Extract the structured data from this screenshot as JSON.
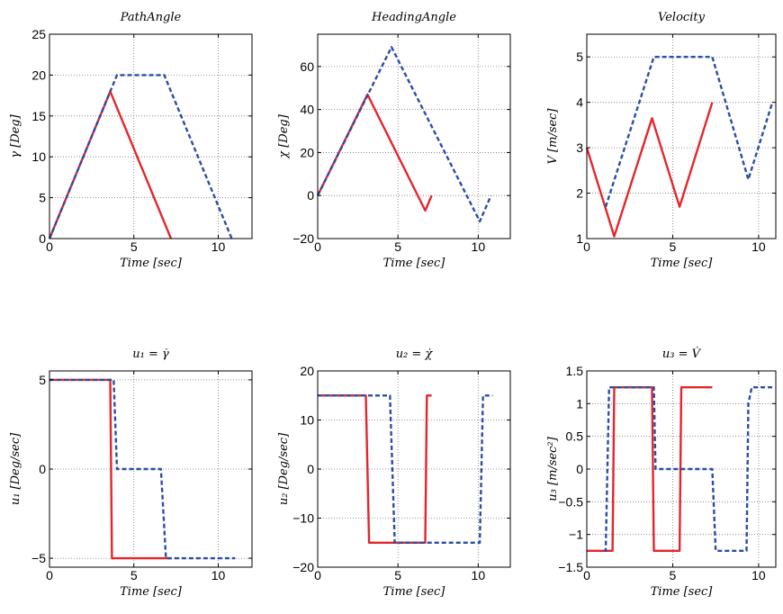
{
  "colors": {
    "series_solid": "#e3262b",
    "series_dashed": "#2a4ea6"
  },
  "chart_data": [
    {
      "type": "line",
      "title": "PathAngle",
      "xlabel": "Time [sec]",
      "ylabel": "γ [Deg]",
      "xlim": [
        0,
        12
      ],
      "ylim": [
        0,
        25
      ],
      "xticks": [
        0,
        5,
        10
      ],
      "yticks": [
        0,
        5,
        10,
        15,
        20,
        25
      ],
      "grid": true,
      "series": [
        {
          "style": "solid",
          "x": [
            0,
            3.6,
            7.2
          ],
          "y": [
            0,
            18,
            0
          ]
        },
        {
          "style": "dashed",
          "x": [
            0,
            3.6,
            4.0,
            6.8,
            10.8
          ],
          "y": [
            0,
            18,
            20,
            20,
            0
          ]
        }
      ]
    },
    {
      "type": "line",
      "title": "HeadingAngle",
      "xlabel": "Time [sec]",
      "ylabel": "χ [Deg]",
      "xlim": [
        0,
        12
      ],
      "ylim": [
        -20,
        75
      ],
      "xticks": [
        0,
        5,
        10
      ],
      "yticks": [
        -20,
        0,
        20,
        40,
        60
      ],
      "grid": true,
      "series": [
        {
          "style": "solid",
          "x": [
            0,
            3.1,
            6.7,
            7.1
          ],
          "y": [
            0,
            47,
            -7,
            0
          ]
        },
        {
          "style": "dashed",
          "x": [
            0,
            4.6,
            10.1,
            10.8
          ],
          "y": [
            0,
            69,
            -12,
            0
          ]
        }
      ]
    },
    {
      "type": "line",
      "title": "Velocity",
      "xlabel": "Time [sec]",
      "ylabel": "V [m/sec]",
      "xlim": [
        0,
        11
      ],
      "ylim": [
        1,
        5.5
      ],
      "xticks": [
        0,
        5,
        10
      ],
      "yticks": [
        1,
        2,
        3,
        4,
        5
      ],
      "grid": true,
      "series": [
        {
          "style": "solid",
          "x": [
            0,
            1.6,
            3.8,
            5.4,
            7.3
          ],
          "y": [
            3,
            1.05,
            3.65,
            1.7,
            4.0
          ]
        },
        {
          "style": "dashed",
          "x": [
            1.1,
            3.9,
            7.3,
            9.4,
            10.8
          ],
          "y": [
            1.7,
            5,
            5,
            2.3,
            4.0
          ]
        }
      ]
    },
    {
      "type": "line",
      "title": "u₁ = γ̇",
      "xlabel": "Time [sec]",
      "ylabel": "u₁ [Deg/sec]",
      "xlim": [
        0,
        12
      ],
      "ylim": [
        -5.5,
        5.5
      ],
      "xticks": [
        0,
        5,
        10
      ],
      "yticks": [
        -5,
        0,
        5
      ],
      "grid": true,
      "series": [
        {
          "style": "solid",
          "x": [
            0,
            3.6,
            3.7,
            7.2
          ],
          "y": [
            5,
            5,
            -5,
            -5
          ]
        },
        {
          "style": "dashed",
          "x": [
            0,
            3.8,
            4.0,
            6.6,
            6.9,
            11
          ],
          "y": [
            5,
            5,
            0,
            0,
            -5,
            -5
          ]
        }
      ]
    },
    {
      "type": "line",
      "title": "u₂ = χ̇",
      "xlabel": "Time [sec]",
      "ylabel": "u₂ [Deg/sec]",
      "xlim": [
        0,
        12
      ],
      "ylim": [
        -20,
        20
      ],
      "xticks": [
        0,
        5,
        10
      ],
      "yticks": [
        -20,
        -10,
        0,
        10,
        20
      ],
      "grid": true,
      "series": [
        {
          "style": "solid",
          "x": [
            0,
            3.0,
            3.2,
            6.7,
            6.8,
            7.1
          ],
          "y": [
            15,
            15,
            -15,
            -15,
            15,
            15
          ]
        },
        {
          "style": "dashed",
          "x": [
            0,
            4.5,
            4.8,
            10.1,
            10.3,
            10.9
          ],
          "y": [
            15,
            15,
            -15,
            -15,
            15,
            15
          ]
        }
      ]
    },
    {
      "type": "line",
      "title": "u₃ = V̇",
      "xlabel": "Time [sec]",
      "ylabel": "u₃ [m/sec²]",
      "xlim": [
        0,
        11
      ],
      "ylim": [
        -1.5,
        1.5
      ],
      "xticks": [
        0,
        5,
        10
      ],
      "yticks": [
        -1.5,
        -1,
        -0.5,
        0,
        0.5,
        1,
        1.5
      ],
      "grid": true,
      "series": [
        {
          "style": "solid",
          "x": [
            0,
            1.5,
            1.6,
            3.8,
            3.9,
            5.4,
            5.5,
            7.3
          ],
          "y": [
            -1.25,
            -1.25,
            1.25,
            1.25,
            -1.25,
            -1.25,
            1.25,
            1.25
          ]
        },
        {
          "style": "dashed",
          "x": [
            1.0,
            1.1,
            1.3,
            3.9,
            4.0,
            7.3,
            7.5,
            9.3,
            9.4,
            9.6,
            10.8
          ],
          "y": [
            -1.25,
            -1.25,
            1.25,
            1.25,
            0,
            0,
            -1.25,
            -1.25,
            1.0,
            1.25,
            1.25
          ]
        }
      ]
    }
  ]
}
